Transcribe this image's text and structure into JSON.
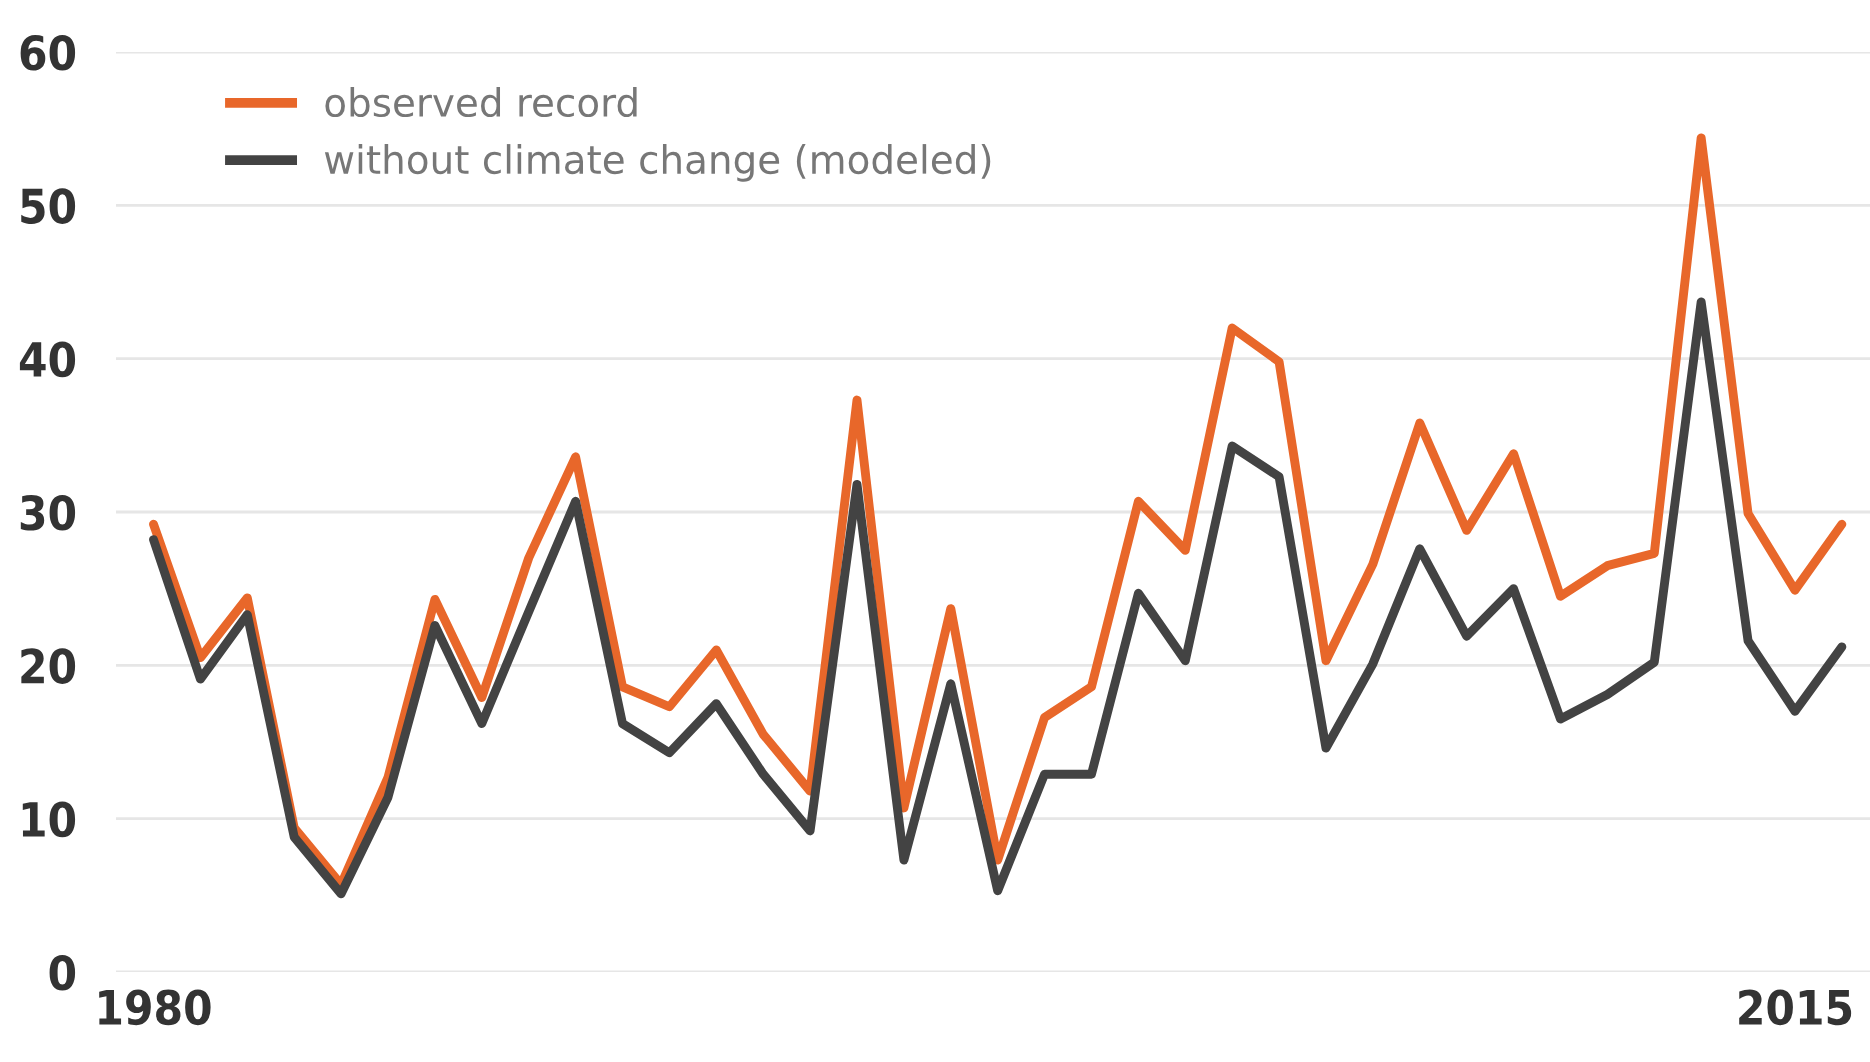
{
  "chart_data": {
    "type": "line",
    "x": [
      1980,
      1981,
      1982,
      1983,
      1984,
      1985,
      1986,
      1987,
      1988,
      1989,
      1990,
      1991,
      1992,
      1993,
      1994,
      1995,
      1996,
      1997,
      1998,
      1999,
      2000,
      2001,
      2002,
      2003,
      2004,
      2005,
      2006,
      2007,
      2008,
      2009,
      2010,
      2011,
      2012,
      2013,
      2014,
      2015,
      2016
    ],
    "series": [
      {
        "name": "observed record",
        "color": "#e8672a",
        "values": [
          29.2,
          20.5,
          24.4,
          9.4,
          5.7,
          12.7,
          24.3,
          17.9,
          27,
          33.6,
          18.6,
          17.3,
          21,
          15.5,
          11.8,
          37.3,
          10.7,
          23.7,
          7.3,
          16.6,
          18.6,
          30.7,
          27.5,
          42,
          39.8,
          20.3,
          26.6,
          35.8,
          28.8,
          33.8,
          24.5,
          26.5,
          27.3,
          54.4,
          29.9,
          24.9,
          29.2
        ]
      },
      {
        "name": "without climate change (modeled)",
        "color": "#434343",
        "values": [
          28.2,
          19.1,
          23.3,
          8.8,
          5.1,
          11.4,
          22.6,
          16.2,
          23.5,
          30.7,
          16.2,
          14.3,
          17.5,
          12.9,
          9.2,
          31.8,
          7.3,
          18.8,
          5.3,
          12.9,
          12.9,
          24.7,
          20.3,
          34.3,
          32.3,
          14.6,
          20.1,
          27.6,
          21.9,
          25,
          16.5,
          18.1,
          20.2,
          43.7,
          21.6,
          17,
          21.2
        ]
      }
    ],
    "xlim": [
      1979.2,
      2016.6
    ],
    "xticks": [
      1980,
      2015
    ],
    "ylim": [
      0,
      60
    ],
    "yticks": [
      0,
      10,
      20,
      30,
      40,
      50,
      60
    ],
    "grid": "y",
    "legend": "top left",
    "line_style": "solid"
  }
}
